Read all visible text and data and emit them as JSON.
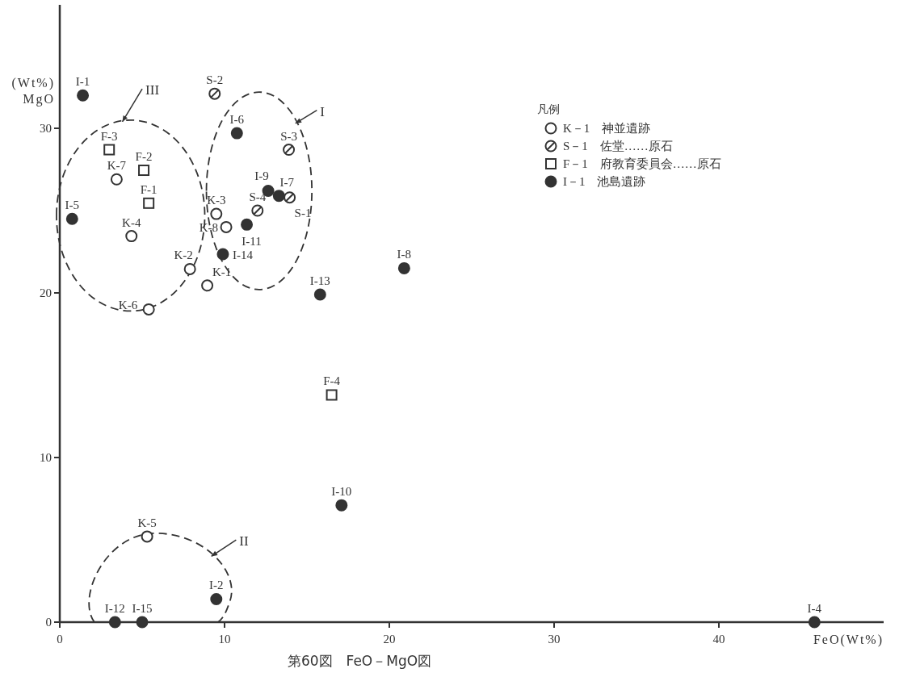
{
  "chart_data": {
    "type": "scatter",
    "title": "第60図　FeO－MgO図",
    "xlabel": "FeO(Wt%)",
    "ylabel": "(Wt%)\nMgO",
    "legend_title": "凡例",
    "legend": "top right",
    "grid": false,
    "xlim": [
      0,
      50
    ],
    "ylim": [
      0,
      37.5
    ],
    "xticks": [
      0,
      10,
      20,
      30,
      40
    ],
    "yticks": [
      0,
      10,
      20,
      30
    ],
    "annotations": [
      "I",
      "II",
      "III"
    ],
    "series": [
      {
        "name": "K－1　神並遺跡",
        "marker": "circle",
        "color": "#ffffff",
        "x": [
          8.95,
          7.9,
          9.5,
          4.35,
          5.3,
          5.4,
          3.45,
          10.1
        ],
        "values": [
          20.45,
          21.45,
          24.8,
          23.45,
          5.2,
          19.0,
          26.9,
          24.0
        ],
        "value_labels": [
          "K-1",
          "K-2",
          "K-3",
          "K-4",
          "K-5",
          "K-6",
          "K-7",
          "K-8"
        ]
      },
      {
        "name": "S－1　佐堂……原石",
        "marker": "circle_slash",
        "color": "#ffffff",
        "x": [
          13.95,
          9.4,
          13.9,
          12.0
        ],
        "values": [
          25.8,
          32.1,
          28.7,
          25.0
        ],
        "value_labels": [
          "S-1",
          "S-2",
          "S-3",
          "S-4"
        ]
      },
      {
        "name": "F－1　府教育委員会……原石",
        "marker": "square",
        "color": "#ffffff",
        "x": [
          5.4,
          5.1,
          3.0,
          16.5
        ],
        "values": [
          25.45,
          27.45,
          28.7,
          13.8
        ],
        "value_labels": [
          "F-1",
          "F-2",
          "F-3",
          "F-4"
        ]
      },
      {
        "name": "I－1　池島遺跡",
        "marker": "circle",
        "color": "#333333",
        "x": [
          1.4,
          9.5,
          45.8,
          0.75,
          10.75,
          13.3,
          20.9,
          12.65,
          17.1,
          11.35,
          3.35,
          15.8,
          9.9,
          5.0
        ],
        "values": [
          32.0,
          1.4,
          0,
          24.5,
          29.7,
          25.9,
          21.5,
          26.2,
          7.1,
          24.15,
          0,
          19.9,
          22.35,
          0
        ],
        "value_labels": [
          "I-1",
          "I-2",
          "I-4",
          "I-5",
          "I-6",
          "I-7",
          "I-8",
          "I-9",
          "I-10",
          "I-11",
          "I-12",
          "I-13",
          "I-14",
          "I-15"
        ]
      }
    ]
  }
}
